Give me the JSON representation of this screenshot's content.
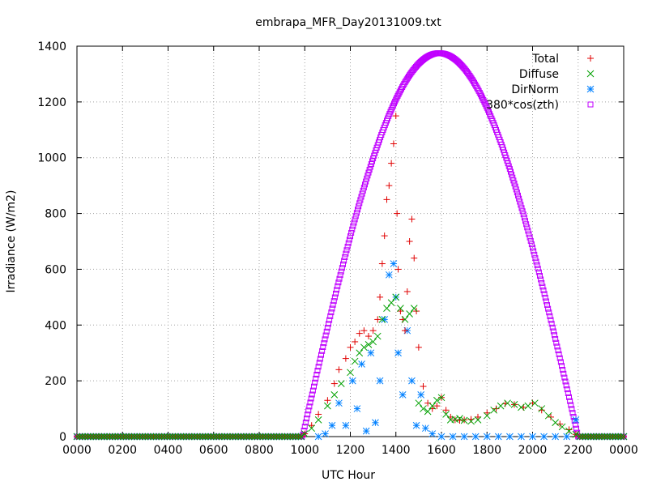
{
  "chart_data": {
    "type": "scatter",
    "title": "embrapa_MFR_Day20131009.txt",
    "xlabel": "UTC Hour",
    "ylabel": "Irradiance (W/m2)",
    "xlim": [
      0,
      24
    ],
    "ylim": [
      0,
      1400
    ],
    "xticks": [
      0,
      2,
      4,
      6,
      8,
      10,
      12,
      14,
      16,
      18,
      20,
      22,
      24
    ],
    "xtick_labels": [
      "0000",
      "0200",
      "0400",
      "0600",
      "0800",
      "1000",
      "1200",
      "1400",
      "1600",
      "1800",
      "2000",
      "2200",
      "0000"
    ],
    "yticks": [
      0,
      200,
      400,
      600,
      800,
      1000,
      1200,
      1400
    ],
    "ytick_labels": [
      "0",
      "200",
      "400",
      "600",
      "800",
      "1000",
      "1200",
      "1400"
    ],
    "grid": true,
    "legend_position": "top-right",
    "series": [
      {
        "name": "Total",
        "marker": "plus",
        "color": "#e00000",
        "x": [
          10.0,
          10.3,
          10.6,
          11.0,
          11.3,
          11.5,
          11.8,
          12.0,
          12.2,
          12.4,
          12.6,
          12.8,
          13.0,
          13.2,
          13.3,
          13.4,
          13.5,
          13.6,
          13.7,
          13.8,
          13.9,
          14.0,
          14.05,
          14.1,
          14.2,
          14.3,
          14.4,
          14.5,
          14.6,
          14.7,
          14.8,
          14.9,
          15.0,
          15.2,
          15.4,
          15.6,
          15.8,
          16.0,
          16.2,
          16.4,
          16.6,
          16.8,
          17.0,
          17.3,
          17.6,
          18.0,
          18.4,
          18.8,
          19.2,
          19.6,
          20.0,
          20.4,
          20.8,
          21.2,
          21.6,
          21.9
        ],
        "y": [
          10,
          40,
          80,
          130,
          190,
          240,
          280,
          320,
          340,
          370,
          380,
          360,
          380,
          420,
          500,
          620,
          720,
          850,
          900,
          980,
          1050,
          1150,
          800,
          600,
          450,
          420,
          380,
          520,
          700,
          780,
          640,
          450,
          320,
          180,
          120,
          100,
          110,
          140,
          95,
          70,
          60,
          58,
          60,
          62,
          70,
          85,
          100,
          118,
          115,
          105,
          120,
          95,
          70,
          45,
          25,
          8
        ]
      },
      {
        "name": "Diffuse",
        "marker": "cross",
        "color": "#00a000",
        "x": [
          10.0,
          10.3,
          10.6,
          11.0,
          11.3,
          11.6,
          12.0,
          12.2,
          12.4,
          12.6,
          12.8,
          13.0,
          13.2,
          13.4,
          13.6,
          13.8,
          14.0,
          14.2,
          14.4,
          14.6,
          14.8,
          15.0,
          15.2,
          15.4,
          15.6,
          15.8,
          16.0,
          16.2,
          16.4,
          16.6,
          16.8,
          17.0,
          17.3,
          17.6,
          18.0,
          18.3,
          18.6,
          18.9,
          19.2,
          19.5,
          19.8,
          20.1,
          20.4,
          20.7,
          21.0,
          21.3,
          21.6,
          21.9
        ],
        "y": [
          10,
          30,
          60,
          110,
          150,
          190,
          230,
          270,
          300,
          320,
          330,
          340,
          360,
          420,
          460,
          480,
          500,
          460,
          420,
          440,
          460,
          120,
          100,
          90,
          110,
          130,
          140,
          80,
          60,
          62,
          65,
          58,
          55,
          60,
          75,
          95,
          110,
          120,
          115,
          105,
          110,
          120,
          100,
          75,
          50,
          35,
          20,
          8
        ]
      },
      {
        "name": "DirNorm",
        "marker": "star",
        "color": "#0080ff",
        "x": [
          10.6,
          10.9,
          11.2,
          11.5,
          11.8,
          12.1,
          12.3,
          12.5,
          12.7,
          12.9,
          13.1,
          13.3,
          13.5,
          13.7,
          13.9,
          14.0,
          14.1,
          14.3,
          14.5,
          14.7,
          14.9,
          15.1,
          15.3,
          15.6,
          16.0,
          16.5,
          17.0,
          17.5,
          18.0,
          18.5,
          19.0,
          19.5,
          20.0,
          20.5,
          21.0,
          21.5,
          21.9
        ],
        "y": [
          0,
          10,
          40,
          120,
          40,
          200,
          100,
          260,
          20,
          300,
          50,
          200,
          420,
          580,
          620,
          500,
          300,
          150,
          380,
          200,
          40,
          150,
          30,
          10,
          0,
          0,
          0,
          0,
          0,
          0,
          0,
          0,
          0,
          0,
          0,
          0,
          60
        ]
      },
      {
        "name": "380*cos(zth)",
        "marker": "square",
        "color": "#c000ff",
        "curve": {
          "sunrise": 9.9,
          "sunset": 22.0,
          "peak_time": 15.9,
          "peak_value": 1375
        }
      }
    ]
  }
}
